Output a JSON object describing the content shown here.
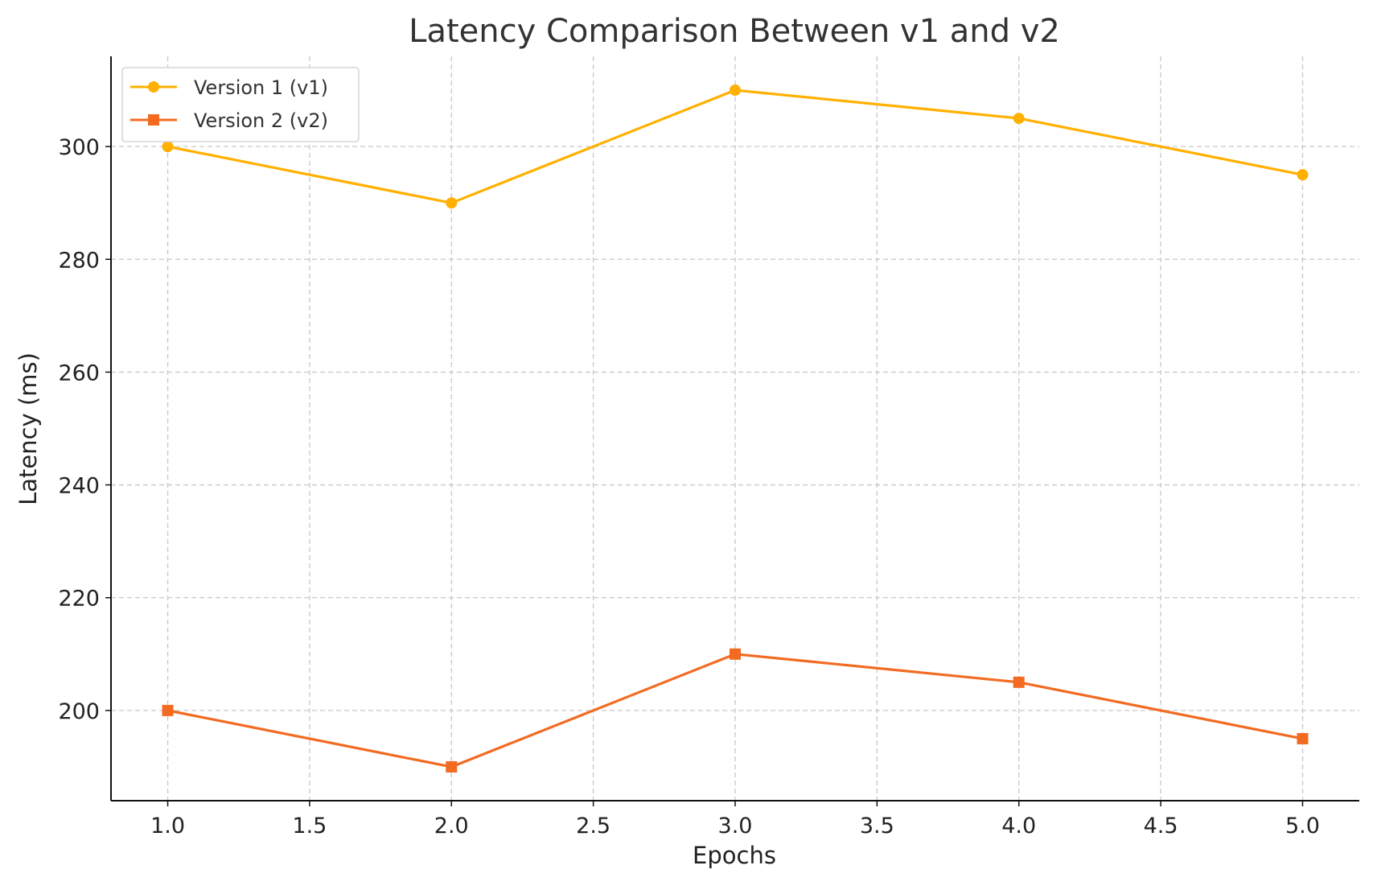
{
  "chart_data": {
    "type": "line",
    "title": "Latency Comparison Between v1 and v2",
    "xlabel": "Epochs",
    "ylabel": "Latency (ms)",
    "xlim": [
      0.8,
      5.2
    ],
    "ylim": [
      184,
      316
    ],
    "x_ticks": [
      "1.0",
      "1.5",
      "2.0",
      "2.5",
      "3.0",
      "3.5",
      "4.0",
      "4.5",
      "5.0"
    ],
    "y_ticks": [
      "200",
      "220",
      "240",
      "260",
      "280",
      "300"
    ],
    "grid": true,
    "legend_position": "top-left",
    "x": [
      1,
      2,
      3,
      4,
      5
    ],
    "series": [
      {
        "name": "Version 1 (v1)",
        "values": [
          300,
          290,
          310,
          305,
          295
        ],
        "color": "#FFB000",
        "marker": "circle"
      },
      {
        "name": "Version 2 (v2)",
        "values": [
          200,
          190,
          210,
          205,
          195
        ],
        "color": "#F26B21",
        "marker": "square"
      }
    ]
  }
}
